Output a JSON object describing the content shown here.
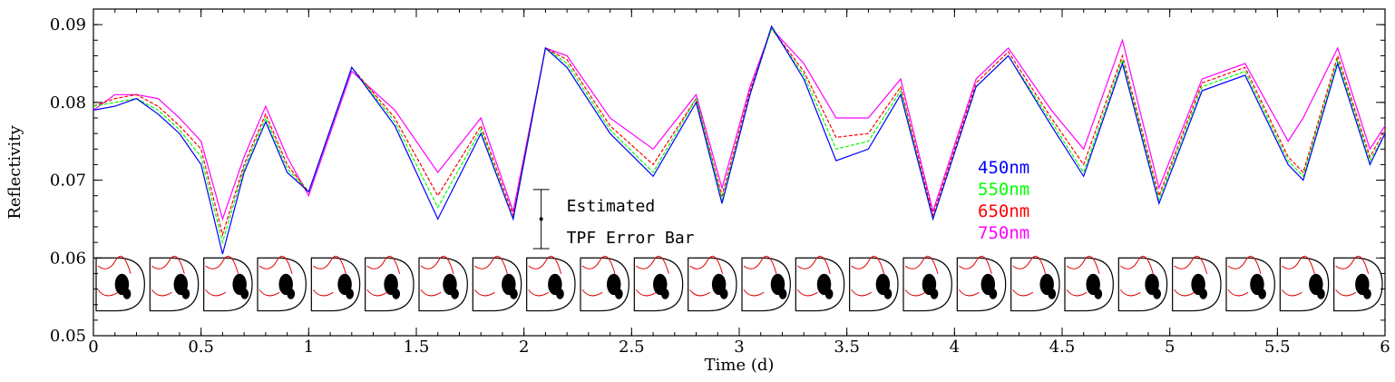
{
  "chart_data": {
    "type": "line",
    "xlabel": "Time (d)",
    "ylabel": "Reflectivity",
    "xlim": [
      0,
      6
    ],
    "ylim": [
      0.05,
      0.092
    ],
    "x_ticks": [
      0,
      0.5,
      1,
      1.5,
      2,
      2.5,
      3,
      3.5,
      4,
      4.5,
      5,
      5.5,
      6
    ],
    "x_tick_labels": [
      "0",
      "0.5",
      "1",
      "1.5",
      "2",
      "2.5",
      "3",
      "3.5",
      "4",
      "4.5",
      "5",
      "5.5",
      "6"
    ],
    "y_ticks": [
      0.05,
      0.06,
      0.07,
      0.08,
      0.09
    ],
    "y_tick_labels": [
      "0.05",
      "0.06",
      "0.07",
      "0.08",
      "0.09"
    ],
    "grid": false,
    "legend_position": "right-middle",
    "series": [
      {
        "name": "750nm",
        "color": "#ff00ff",
        "x": [
          0,
          0.1,
          0.2,
          0.3,
          0.4,
          0.5,
          0.6,
          0.7,
          0.8,
          0.9,
          1.0,
          1.2,
          1.4,
          1.6,
          1.8,
          1.95,
          2.1,
          2.2,
          2.4,
          2.6,
          2.8,
          2.92,
          3.05,
          3.15,
          3.3,
          3.45,
          3.6,
          3.75,
          3.9,
          4.1,
          4.25,
          4.45,
          4.6,
          4.78,
          4.95,
          5.15,
          5.35,
          5.55,
          5.62,
          5.78,
          5.93,
          6.0
        ],
        "y": [
          0.079,
          0.081,
          0.081,
          0.0805,
          0.078,
          0.075,
          0.065,
          0.073,
          0.0795,
          0.073,
          0.068,
          0.084,
          0.079,
          0.071,
          0.078,
          0.066,
          0.087,
          0.086,
          0.078,
          0.074,
          0.081,
          0.069,
          0.082,
          0.0895,
          0.085,
          0.078,
          0.078,
          0.083,
          0.066,
          0.083,
          0.087,
          0.079,
          0.074,
          0.088,
          0.069,
          0.083,
          0.085,
          0.075,
          0.078,
          0.087,
          0.074,
          0.077
        ]
      },
      {
        "name": "650nm",
        "color": "#ff0000",
        "x": [
          0,
          0.1,
          0.2,
          0.3,
          0.4,
          0.5,
          0.6,
          0.7,
          0.8,
          0.9,
          1.0,
          1.2,
          1.4,
          1.6,
          1.8,
          1.95,
          2.1,
          2.2,
          2.4,
          2.6,
          2.8,
          2.92,
          3.05,
          3.15,
          3.3,
          3.45,
          3.6,
          3.75,
          3.9,
          4.1,
          4.25,
          4.45,
          4.6,
          4.78,
          4.95,
          5.15,
          5.35,
          5.55,
          5.62,
          5.78,
          5.93,
          6.0
        ],
        "y": [
          0.0795,
          0.0805,
          0.081,
          0.0795,
          0.077,
          0.074,
          0.063,
          0.072,
          0.0785,
          0.072,
          0.0685,
          0.0845,
          0.078,
          0.068,
          0.077,
          0.0655,
          0.087,
          0.0855,
          0.077,
          0.072,
          0.0805,
          0.068,
          0.0815,
          0.0895,
          0.084,
          0.0755,
          0.076,
          0.082,
          0.0655,
          0.0825,
          0.0865,
          0.078,
          0.072,
          0.086,
          0.068,
          0.0825,
          0.0845,
          0.073,
          0.071,
          0.086,
          0.073,
          0.0765
        ]
      },
      {
        "name": "550nm",
        "color": "#00ff00",
        "x": [
          0,
          0.1,
          0.2,
          0.3,
          0.4,
          0.5,
          0.6,
          0.7,
          0.8,
          0.9,
          1.0,
          1.2,
          1.4,
          1.6,
          1.8,
          1.95,
          2.1,
          2.2,
          2.4,
          2.6,
          2.8,
          2.92,
          3.05,
          3.15,
          3.3,
          3.45,
          3.6,
          3.75,
          3.9,
          4.1,
          4.25,
          4.45,
          4.6,
          4.78,
          4.95,
          5.15,
          5.35,
          5.55,
          5.62,
          5.78,
          5.93,
          6.0
        ],
        "y": [
          0.0795,
          0.08,
          0.0805,
          0.079,
          0.0765,
          0.073,
          0.062,
          0.0715,
          0.078,
          0.0715,
          0.0685,
          0.0845,
          0.0775,
          0.0665,
          0.0765,
          0.065,
          0.087,
          0.085,
          0.0765,
          0.071,
          0.0805,
          0.0675,
          0.081,
          0.0895,
          0.0835,
          0.074,
          0.075,
          0.0815,
          0.065,
          0.082,
          0.086,
          0.0775,
          0.071,
          0.0855,
          0.0675,
          0.082,
          0.084,
          0.0725,
          0.0705,
          0.0855,
          0.0725,
          0.076
        ]
      },
      {
        "name": "450nm",
        "color": "#0000ff",
        "x": [
          0,
          0.1,
          0.2,
          0.3,
          0.4,
          0.5,
          0.6,
          0.7,
          0.8,
          0.9,
          1.0,
          1.2,
          1.4,
          1.6,
          1.8,
          1.95,
          2.1,
          2.2,
          2.4,
          2.6,
          2.8,
          2.92,
          3.05,
          3.15,
          3.3,
          3.45,
          3.6,
          3.75,
          3.9,
          4.1,
          4.25,
          4.45,
          4.6,
          4.78,
          4.95,
          5.15,
          5.35,
          5.55,
          5.62,
          5.78,
          5.93,
          6.0
        ],
        "y": [
          0.079,
          0.0795,
          0.0805,
          0.0785,
          0.076,
          0.072,
          0.0605,
          0.071,
          0.0775,
          0.071,
          0.0685,
          0.0845,
          0.077,
          0.065,
          0.076,
          0.065,
          0.087,
          0.0845,
          0.076,
          0.0705,
          0.08,
          0.067,
          0.081,
          0.0898,
          0.083,
          0.0725,
          0.074,
          0.081,
          0.065,
          0.082,
          0.086,
          0.077,
          0.0705,
          0.085,
          0.067,
          0.0815,
          0.0835,
          0.072,
          0.07,
          0.085,
          0.072,
          0.076
        ]
      }
    ],
    "annotation": {
      "lines": [
        "Estimated",
        "TPF Error Bar"
      ],
      "x": 2.08,
      "y_center": 0.065,
      "y_low": 0.0612,
      "y_high": 0.0688
    },
    "inset_images": {
      "count": 24,
      "x_start": 0.0,
      "x_step": 0.25,
      "y_low": 0.0532,
      "y_high": 0.06
    }
  }
}
